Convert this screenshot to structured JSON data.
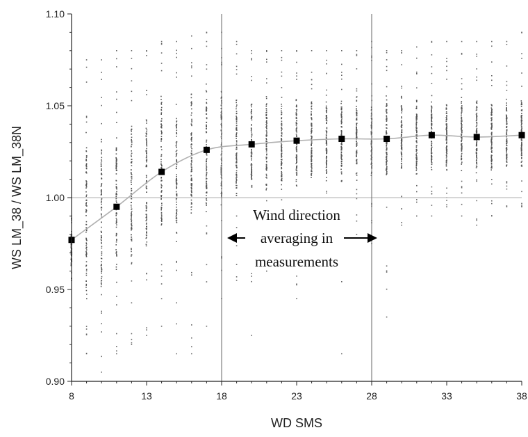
{
  "chart_data": {
    "type": "scatter",
    "xlabel": "WD SMS",
    "ylabel": "WS LM_38 / WS LM_38N",
    "xlim": [
      8,
      38
    ],
    "ylim": [
      0.9,
      1.1
    ],
    "x_ticks": [
      "8",
      "13",
      "18",
      "23",
      "28",
      "33",
      "38"
    ],
    "y_ticks": [
      "0.90",
      "0.95",
      "1.00",
      "1.05",
      "1.10"
    ],
    "grid": false,
    "reference_line_y": 1.0,
    "vertical_lines_x": [
      18,
      28
    ],
    "annotation": {
      "lines": [
        "Wind direction",
        "averaging in",
        "measurements"
      ],
      "arrows": "both-horizontal",
      "x_range": [
        18,
        28
      ],
      "y": 0.978
    },
    "mean_series": {
      "marker": "square",
      "x": [
        8,
        11,
        14,
        17,
        20,
        23,
        26,
        29,
        32,
        35,
        38
      ],
      "y": [
        0.977,
        0.995,
        1.014,
        1.026,
        1.029,
        1.031,
        1.032,
        1.032,
        1.034,
        1.033,
        1.034
      ]
    },
    "scatter_columns": {
      "x": [
        8,
        9,
        10,
        11,
        12,
        13,
        14,
        15,
        16,
        17,
        18,
        19,
        20,
        21,
        22,
        23,
        24,
        25,
        26,
        27,
        28,
        29,
        30,
        31,
        32,
        33,
        34,
        35,
        36,
        37,
        38
      ],
      "dense_low": [
        0.96,
        0.935,
        0.94,
        0.95,
        0.955,
        0.96,
        0.965,
        0.97,
        0.98,
        0.985,
        0.99,
        0.995,
        0.997,
        1.0,
        1.0,
        1.003,
        1.005,
        1.005,
        1.005,
        1.007,
        1.007,
        1.007,
        1.008,
        1.008,
        1.01,
        1.01,
        1.01,
        1.01,
        1.01,
        1.01,
        1.01
      ],
      "dense_high": [
        0.985,
        1.04,
        1.04,
        1.045,
        1.05,
        1.055,
        1.06,
        1.06,
        1.065,
        1.065,
        1.065,
        1.06,
        1.06,
        1.06,
        1.058,
        1.058,
        1.058,
        1.058,
        1.058,
        1.058,
        1.058,
        1.058,
        1.058,
        1.058,
        1.058,
        1.058,
        1.058,
        1.058,
        1.058,
        1.058,
        1.058
      ],
      "min": [
        0.955,
        0.915,
        0.905,
        0.915,
        0.92,
        0.925,
        0.93,
        0.915,
        0.915,
        0.93,
        0.945,
        0.955,
        0.925,
        0.96,
        0.965,
        0.945,
        0.975,
        0.98,
        0.915,
        0.98,
        0.975,
        0.935,
        0.985,
        0.99,
        0.99,
        0.995,
        0.99,
        0.985,
        0.99,
        0.995,
        0.995
      ],
      "max": [
        0.99,
        1.075,
        1.075,
        1.08,
        1.08,
        1.08,
        1.085,
        1.085,
        1.088,
        1.09,
        1.09,
        1.085,
        1.08,
        1.08,
        1.08,
        1.08,
        1.08,
        1.08,
        1.08,
        1.08,
        1.085,
        1.08,
        1.08,
        1.082,
        1.085,
        1.085,
        1.085,
        1.085,
        1.085,
        1.085,
        1.09
      ]
    }
  }
}
